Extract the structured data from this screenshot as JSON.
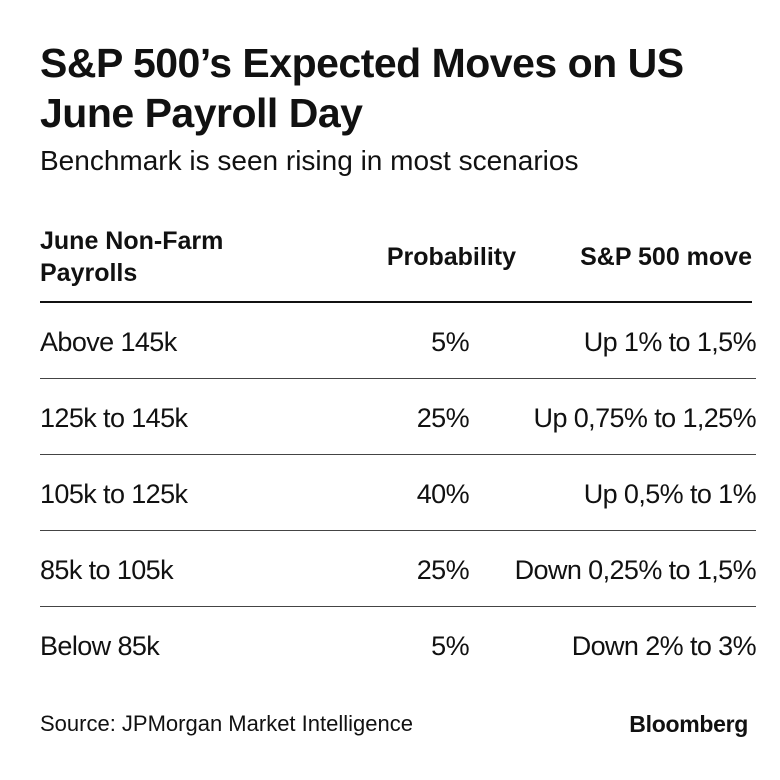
{
  "title": "S&P 500’s Expected Moves on US June Payroll Day",
  "subtitle": "Benchmark is seen rising in most scenarios",
  "table": {
    "headers": [
      "June Non-Farm Payrolls",
      "Probability",
      "S&P 500 move"
    ],
    "rows": [
      [
        "Above 145k",
        "5%",
        "Up 1% to 1,5%"
      ],
      [
        "125k to 145k",
        "25%",
        "Up 0,75% to 1,25%"
      ],
      [
        "105k to 125k",
        "40%",
        "Up 0,5% to 1%"
      ],
      [
        "85k to 105k",
        "25%",
        "Down 0,25% to 1,5%"
      ],
      [
        "Below 85k",
        "5%",
        "Down 2% to 3%"
      ]
    ]
  },
  "footer": {
    "source": "Source: JPMorgan Market Intelligence",
    "brand": "Bloomberg"
  }
}
